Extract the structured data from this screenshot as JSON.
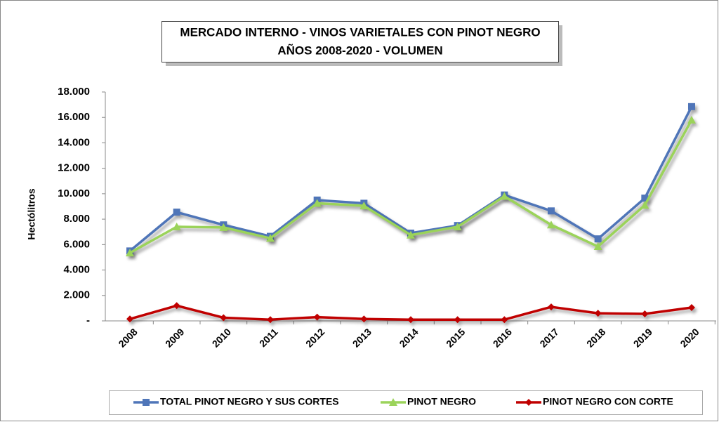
{
  "chart_data": {
    "type": "line",
    "title": "MERCADO INTERNO - VINOS VARIETALES CON PINOT NEGRO",
    "subtitle": "AÑOS 2008-2020 - VOLUMEN",
    "y_label": "Hectólitros",
    "categories": [
      "2008",
      "2009",
      "2010",
      "2011",
      "2012",
      "2013",
      "2014",
      "2015",
      "2016",
      "2017",
      "2018",
      "2019",
      "2020"
    ],
    "series": [
      {
        "name": "TOTAL PINOT NEGRO Y SUS CORTES",
        "color": "#4f75b8",
        "marker": "square",
        "values": [
          5500,
          8550,
          7550,
          6650,
          9500,
          9250,
          6900,
          7500,
          9900,
          8650,
          6450,
          9650,
          16850
        ]
      },
      {
        "name": "PINOT NEGRO",
        "color": "#9bd35a",
        "marker": "triangle",
        "values": [
          5350,
          7400,
          7350,
          6500,
          9250,
          9050,
          6750,
          7400,
          9800,
          7550,
          5850,
          9100,
          15800
        ]
      },
      {
        "name": "PINOT NEGRO  CON CORTE",
        "color": "#c00000",
        "marker": "diamond",
        "values": [
          150,
          1200,
          250,
          100,
          300,
          150,
          100,
          100,
          100,
          1100,
          600,
          550,
          1050
        ]
      }
    ],
    "ylim": [
      0,
      18000
    ],
    "yticks": [
      {
        "value": 0,
        "label": "-"
      },
      {
        "value": 2000,
        "label": "2.000"
      },
      {
        "value": 4000,
        "label": "4.000"
      },
      {
        "value": 6000,
        "label": "6.000"
      },
      {
        "value": 8000,
        "label": "8.000"
      },
      {
        "value": 10000,
        "label": "10.000"
      },
      {
        "value": 12000,
        "label": "12.000"
      },
      {
        "value": 14000,
        "label": "14.000"
      },
      {
        "value": 16000,
        "label": "16.000"
      },
      {
        "value": 18000,
        "label": "18.000"
      }
    ],
    "legend": "bottom"
  }
}
